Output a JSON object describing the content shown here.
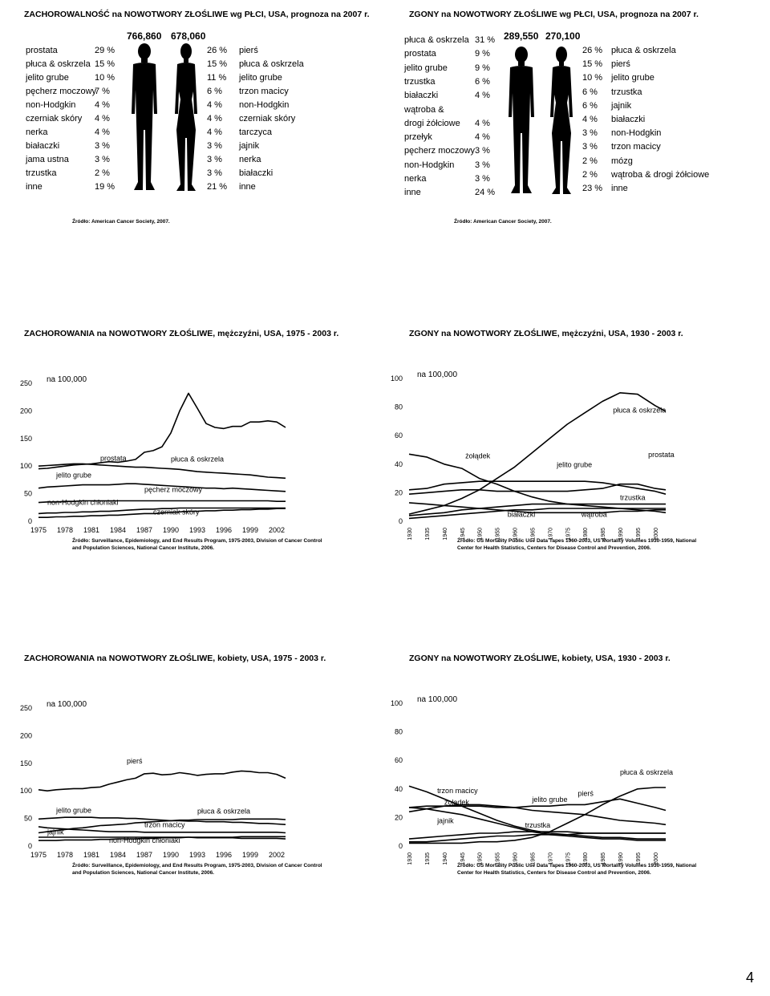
{
  "page_number": "4",
  "slide1": {
    "title": "ZACHOROWALNOŚĆ na NOWOTWORY ZŁOŚLIWE wg PŁCI, USA, prognoza na 2007 r.",
    "men_total": "766,860",
    "women_total": "678,060",
    "men": [
      {
        "site": "prostata",
        "pct": "29 %"
      },
      {
        "site": "płuca & oskrzela",
        "pct": "15 %"
      },
      {
        "site": "jelito grube",
        "pct": "10 %"
      },
      {
        "site": "pęcherz moczowy",
        "pct": "7 %"
      },
      {
        "site": "non-Hodgkin",
        "pct": "4 %"
      },
      {
        "site": "czerniak skóry",
        "pct": "4 %"
      },
      {
        "site": "nerka",
        "pct": "4 %"
      },
      {
        "site": "białaczki",
        "pct": "3 %"
      },
      {
        "site": "jama ustna",
        "pct": "3 %"
      },
      {
        "site": "trzustka",
        "pct": "2 %"
      },
      {
        "site": "inne",
        "pct": "19 %"
      }
    ],
    "women": [
      {
        "pct": "26 %",
        "site": "pierś"
      },
      {
        "pct": "15 %",
        "site": "płuca & oskrzela"
      },
      {
        "pct": "11 %",
        "site": "jelito grube"
      },
      {
        "pct": "6 %",
        "site": "trzon macicy"
      },
      {
        "pct": "4 %",
        "site": "non-Hodgkin"
      },
      {
        "pct": "4 %",
        "site": "czerniak skóry"
      },
      {
        "pct": "4 %",
        "site": "tarczyca"
      },
      {
        "pct": "3 %",
        "site": "jajnik"
      },
      {
        "pct": "3 %",
        "site": "nerka"
      },
      {
        "pct": "3 %",
        "site": "białaczki"
      },
      {
        "pct": "21 %",
        "site": "inne"
      }
    ],
    "source": "Źródło: American Cancer Society, 2007."
  },
  "slide2": {
    "title": "ZGONY na NOWOTWORY ZŁOŚLIWE wg PŁCI, USA, prognoza na 2007 r.",
    "men_total": "289,550",
    "women_total": "270,100",
    "men": [
      {
        "site": "płuca & oskrzela",
        "pct": "31 %"
      },
      {
        "site": "prostata",
        "pct": "9 %"
      },
      {
        "site": "jelito grube",
        "pct": "9 %"
      },
      {
        "site": "trzustka",
        "pct": "6 %"
      },
      {
        "site": "białaczki",
        "pct": "4 %"
      },
      {
        "site": "wątroba &",
        "pct": ""
      },
      {
        "site": "drogi żółciowe",
        "pct": "4 %"
      },
      {
        "site": "przełyk",
        "pct": "4 %"
      },
      {
        "site": "pęcherz moczowy",
        "pct": "3 %"
      },
      {
        "site": "non-Hodgkin",
        "pct": "3 %"
      },
      {
        "site": "nerka",
        "pct": "3 %"
      },
      {
        "site": "inne",
        "pct": "24 %"
      }
    ],
    "women": [
      {
        "pct": "26 %",
        "site": "płuca & oskrzela"
      },
      {
        "pct": "15 %",
        "site": "pierś"
      },
      {
        "pct": "10 %",
        "site": "jelito grube"
      },
      {
        "pct": "6 %",
        "site": "trzustka"
      },
      {
        "pct": "6 %",
        "site": "jajnik"
      },
      {
        "pct": "4 %",
        "site": "białaczki"
      },
      {
        "pct": "3 %",
        "site": "non-Hodgkin"
      },
      {
        "pct": "3 %",
        "site": "trzon macicy"
      },
      {
        "pct": "2 %",
        "site": "mózg"
      },
      {
        "pct": "2 %",
        "site": "wątroba & drogi żółciowe"
      },
      {
        "pct": "23 %",
        "site": "inne"
      }
    ],
    "source": "Źródło: American Cancer Society, 2007."
  },
  "chart_data": [
    {
      "type": "line",
      "title": "ZACHOROWANIA na NOWOTWORY ZŁOŚLIWE, mężczyźni, USA, 1975 - 2003 r.",
      "unit_label": "na 100,000",
      "x": [
        1975,
        1976,
        1977,
        1978,
        1979,
        1980,
        1981,
        1982,
        1983,
        1984,
        1985,
        1986,
        1987,
        1988,
        1989,
        1990,
        1991,
        1992,
        1993,
        1994,
        1995,
        1996,
        1997,
        1998,
        1999,
        2000,
        2001,
        2002,
        2003
      ],
      "xticks": [
        "1975",
        "1978",
        "1981",
        "1984",
        "1987",
        "1990",
        "1993",
        "1996",
        "1999",
        "2002"
      ],
      "yticks": [
        "0",
        "50",
        "100",
        "150",
        "200",
        "250"
      ],
      "ylim": [
        0,
        250
      ],
      "series": [
        {
          "name": "prostata",
          "values": [
            95,
            96,
            98,
            100,
            102,
            103,
            104,
            106,
            108,
            107,
            109,
            112,
            125,
            128,
            135,
            160,
            200,
            232,
            205,
            177,
            170,
            168,
            172,
            172,
            180,
            180,
            182,
            180,
            170
          ]
        },
        {
          "name": "płuca & oskrzela",
          "values": [
            100,
            101,
            102,
            103,
            104,
            104,
            103,
            102,
            101,
            100,
            99,
            98,
            98,
            97,
            96,
            95,
            94,
            92,
            90,
            89,
            88,
            87,
            86,
            85,
            84,
            82,
            80,
            79,
            78
          ]
        },
        {
          "name": "jelito grube",
          "values": [
            60,
            62,
            63,
            64,
            65,
            66,
            66,
            66,
            66,
            67,
            68,
            68,
            67,
            66,
            65,
            64,
            63,
            62,
            61,
            60,
            60,
            59,
            60,
            59,
            58,
            57,
            56,
            55,
            54
          ]
        },
        {
          "name": "pęcherz moczowy",
          "values": [
            34,
            35,
            35,
            36,
            36,
            37,
            37,
            37,
            37,
            37,
            37,
            37,
            37,
            37,
            37,
            37,
            37,
            37,
            37,
            37,
            37,
            37,
            37,
            37,
            37,
            37,
            37,
            36,
            36
          ]
        },
        {
          "name": "non-Hodgkin chłoniaki",
          "values": [
            14,
            15,
            15,
            16,
            16,
            17,
            17,
            18,
            18,
            19,
            20,
            21,
            22,
            22,
            23,
            23,
            24,
            24,
            24,
            24,
            24,
            24,
            24,
            24,
            24,
            24,
            24,
            24,
            24
          ]
        },
        {
          "name": "czerniak skóry",
          "values": [
            7,
            7,
            8,
            8,
            9,
            9,
            10,
            10,
            11,
            11,
            12,
            13,
            14,
            14,
            15,
            16,
            17,
            18,
            18,
            19,
            19,
            20,
            20,
            21,
            21,
            22,
            22,
            23,
            23
          ]
        }
      ]
    },
    {
      "type": "line",
      "title": "ZGONY na NOWOTWORY ZŁOŚLIWE, mężczyźni, USA, 1930 - 2003 r.",
      "unit_label": "na 100,000",
      "x": [
        1930,
        1935,
        1940,
        1945,
        1950,
        1955,
        1960,
        1965,
        1970,
        1975,
        1980,
        1985,
        1990,
        1995,
        2000,
        2003
      ],
      "xticks": [
        "1930",
        "1935",
        "1940",
        "1945",
        "1950",
        "1955",
        "1960",
        "1965",
        "1970",
        "1975",
        "1980",
        "1985",
        "1990",
        "1995",
        "2000"
      ],
      "yticks": [
        "0",
        "20",
        "40",
        "60",
        "80",
        "100"
      ],
      "ylim": [
        0,
        100
      ],
      "series": [
        {
          "name": "płuca & oskrzela",
          "values": [
            5,
            8,
            11,
            16,
            22,
            30,
            38,
            48,
            58,
            68,
            76,
            84,
            90,
            89,
            81,
            77
          ]
        },
        {
          "name": "żołądek",
          "values": [
            47,
            45,
            40,
            37,
            30,
            26,
            21,
            17,
            14,
            12,
            11,
            10,
            9,
            8,
            7,
            6
          ]
        },
        {
          "name": "jelito grube",
          "values": [
            22,
            23,
            26,
            27,
            28,
            28,
            28,
            28,
            28,
            28,
            28,
            27,
            25,
            23,
            21,
            19
          ]
        },
        {
          "name": "prostata",
          "values": [
            19,
            20,
            21,
            22,
            22,
            21,
            21,
            21,
            21,
            21,
            22,
            23,
            26,
            26,
            23,
            22
          ]
        },
        {
          "name": "trzustka",
          "values": [
            4,
            5,
            6,
            8,
            9,
            10,
            11,
            12,
            12,
            12,
            12,
            12,
            12,
            12,
            12,
            12
          ]
        },
        {
          "name": "białaczki",
          "values": [
            2,
            3,
            4,
            5,
            6,
            7,
            8,
            8,
            9,
            9,
            9,
            9,
            9,
            9,
            9,
            9
          ]
        },
        {
          "name": "wątroba",
          "values": [
            13,
            12,
            11,
            10,
            9,
            8,
            7,
            6,
            6,
            6,
            6,
            6,
            7,
            7,
            8,
            8
          ]
        }
      ]
    },
    {
      "type": "line",
      "title": "ZACHOROWANIA na NOWOTWORY ZŁOŚLIWE, kobiety, USA, 1975 - 2003 r.",
      "unit_label": "na 100,000",
      "x": [
        1975,
        1976,
        1977,
        1978,
        1979,
        1980,
        1981,
        1982,
        1983,
        1984,
        1985,
        1986,
        1987,
        1988,
        1989,
        1990,
        1991,
        1992,
        1993,
        1994,
        1995,
        1996,
        1997,
        1998,
        1999,
        2000,
        2001,
        2002,
        2003
      ],
      "xticks": [
        "1975",
        "1978",
        "1981",
        "1984",
        "1987",
        "1990",
        "1993",
        "1996",
        "1999",
        "2002"
      ],
      "yticks": [
        "0",
        "50",
        "100",
        "150",
        "200",
        "250"
      ],
      "ylim": [
        0,
        250
      ],
      "series": [
        {
          "name": "pierś",
          "values": [
            102,
            100,
            102,
            103,
            104,
            104,
            106,
            107,
            112,
            116,
            120,
            123,
            131,
            132,
            129,
            130,
            133,
            131,
            128,
            130,
            131,
            131,
            134,
            136,
            135,
            133,
            133,
            130,
            123
          ]
        },
        {
          "name": "jelito grube",
          "values": [
            49,
            50,
            51,
            52,
            52,
            52,
            52,
            51,
            51,
            51,
            50,
            50,
            49,
            48,
            47,
            46,
            46,
            45,
            45,
            44,
            44,
            44,
            43,
            43,
            42,
            41,
            41,
            40,
            39
          ]
        },
        {
          "name": "płuca & oskrzela",
          "values": [
            24,
            26,
            28,
            30,
            32,
            33,
            35,
            37,
            38,
            39,
            40,
            42,
            43,
            44,
            45,
            46,
            47,
            47,
            48,
            48,
            48,
            48,
            48,
            49,
            49,
            49,
            49,
            49,
            48
          ]
        },
        {
          "name": "trzon macicy",
          "values": [
            35,
            33,
            32,
            31,
            30,
            29,
            28,
            27,
            26,
            26,
            26,
            26,
            25,
            25,
            25,
            25,
            25,
            25,
            25,
            25,
            25,
            25,
            25,
            25,
            25,
            25,
            25,
            25,
            24
          ]
        },
        {
          "name": "jajnik",
          "values": [
            16,
            16,
            16,
            16,
            16,
            16,
            16,
            16,
            16,
            16,
            16,
            16,
            16,
            16,
            16,
            16,
            16,
            16,
            15,
            15,
            15,
            15,
            15,
            14,
            14,
            14,
            14,
            14,
            13
          ]
        },
        {
          "name": "non-Hodgkin chłoniaki",
          "values": [
            10,
            10,
            10,
            11,
            11,
            11,
            11,
            12,
            12,
            13,
            13,
            13,
            14,
            14,
            15,
            15,
            15,
            16,
            16,
            16,
            16,
            16,
            16,
            17,
            17,
            17,
            17,
            17,
            17
          ]
        }
      ]
    },
    {
      "type": "line",
      "title": "ZGONY na NOWOTWORY ZŁOŚLIWE, kobiety, USA, 1930 - 2003 r.",
      "unit_label": "na 100,000",
      "x": [
        1930,
        1935,
        1940,
        1945,
        1950,
        1955,
        1960,
        1965,
        1970,
        1975,
        1980,
        1985,
        1990,
        1995,
        2000,
        2003
      ],
      "xticks": [
        "1930",
        "1935",
        "1940",
        "1945",
        "1950",
        "1955",
        "1960",
        "1965",
        "1970",
        "1975",
        "1980",
        "1985",
        "1990",
        "1995",
        "2000"
      ],
      "yticks": [
        "0",
        "20",
        "40",
        "60",
        "80",
        "100"
      ],
      "ylim": [
        0,
        100
      ],
      "series": [
        {
          "name": "płuca & oskrzela",
          "values": [
            2,
            2,
            2,
            2,
            3,
            3,
            4,
            6,
            10,
            16,
            22,
            29,
            35,
            40,
            41,
            41
          ]
        },
        {
          "name": "pierś",
          "values": [
            27,
            28,
            28,
            28,
            28,
            27,
            27,
            28,
            28,
            29,
            29,
            31,
            33,
            30,
            27,
            25
          ]
        },
        {
          "name": "trzon macicy",
          "values": [
            42,
            38,
            33,
            28,
            23,
            18,
            14,
            11,
            9,
            8,
            7,
            6,
            6,
            5,
            5,
            5
          ]
        },
        {
          "name": "jelito grube",
          "values": [
            24,
            26,
            28,
            29,
            29,
            28,
            27,
            25,
            24,
            23,
            22,
            20,
            18,
            17,
            16,
            15
          ]
        },
        {
          "name": "żołądek",
          "values": [
            27,
            26,
            24,
            22,
            19,
            16,
            13,
            10,
            8,
            7,
            6,
            5,
            5,
            4,
            4,
            4
          ]
        },
        {
          "name": "jajnik",
          "values": [
            5,
            6,
            7,
            8,
            9,
            9,
            10,
            10,
            10,
            10,
            9,
            9,
            9,
            9,
            9,
            9
          ]
        },
        {
          "name": "trzustka",
          "values": [
            3,
            3,
            4,
            5,
            6,
            7,
            7,
            8,
            8,
            8,
            9,
            9,
            9,
            9,
            9,
            9
          ]
        }
      ]
    }
  ],
  "chart_sources": [
    "Źródło: Surveillance, Epidemiology, and End Results Program, 1975-2003, Division of Cancer Control and Population Sciences, National Cancer Institute, 2006.",
    "Źródło: US Mortality Public Use Data Tapes 1960-2003, US Mortality Volumes 1930-1959, National Center for Health Statistics, Centers for Disease Control and Prevention, 2006.",
    "Źródło: Surveillance, Epidemiology, and End Results Program, 1975-2003, Division of Cancer Control and Population Sciences, National Cancer Institute, 2006.",
    "Źródło: US Mortality Public Use Data Tapes 1960-2003, US Mortality Volumes 1930-1959, National Center for Health Statistics, Centers for Disease Control and Prevention, 2006."
  ]
}
